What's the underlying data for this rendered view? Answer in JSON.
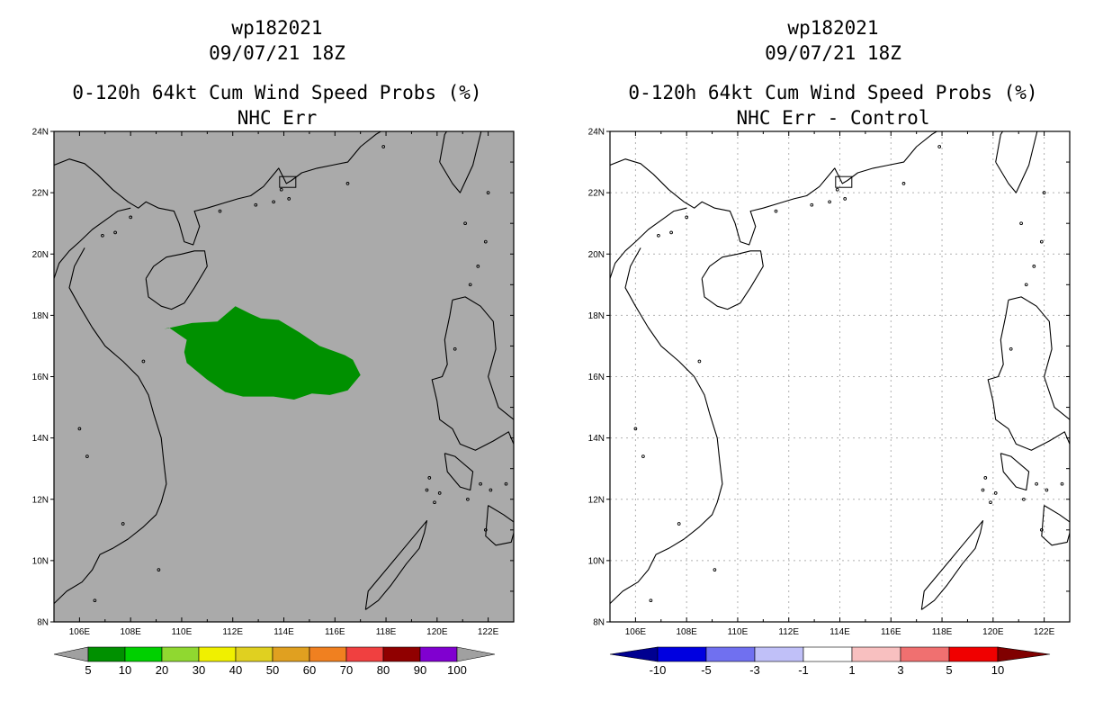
{
  "panels": [
    {
      "id": "left",
      "title_line1": "wp182021",
      "title_line2": "09/07/21 18Z",
      "title_line3": "0-120h 64kt Cum Wind Speed Probs (%)",
      "title_line4": "NHC Err",
      "background": "#aaaaaa",
      "grid": false,
      "colorbar": {
        "labels": [
          "5",
          "10",
          "20",
          "30",
          "40",
          "50",
          "60",
          "70",
          "80",
          "90",
          "100"
        ],
        "colors": [
          "#009000",
          "#00d000",
          "#90d830",
          "#f0f000",
          "#e0d020",
          "#e0a020",
          "#f08020",
          "#f04040",
          "#900000",
          "#8000d0"
        ],
        "end_color": "#a0a0a0"
      }
    },
    {
      "id": "right",
      "title_line1": "wp182021",
      "title_line2": "09/07/21 18Z",
      "title_line3": "0-120h 64kt Cum Wind Speed Probs (%)",
      "title_line4": "NHC Err - Control",
      "background": "#ffffff",
      "grid": true,
      "colorbar": {
        "labels": [
          "-10",
          "-5",
          "-3",
          "-1",
          "1",
          "3",
          "5",
          "10"
        ],
        "colors": [
          "#0000e0",
          "#7070f0",
          "#c0c0f8",
          "#ffffff",
          "#f8c0c0",
          "#f07070",
          "#f00000"
        ],
        "end_left_color": "#000090",
        "end_right_color": "#800000"
      }
    }
  ],
  "lat_labels": [
    "24N",
    "22N",
    "20N",
    "18N",
    "16N",
    "14N",
    "12N",
    "10N",
    "8N"
  ],
  "lon_labels": [
    "106E",
    "108E",
    "110E",
    "112E",
    "114E",
    "116E",
    "118E",
    "120E",
    "122E"
  ],
  "probability_area": {
    "color": "#009000",
    "level": "5-10",
    "polygon_lonlat": [
      [
        109.3,
        17.55
      ],
      [
        110.4,
        17.75
      ],
      [
        111.4,
        17.8
      ],
      [
        112.1,
        18.3
      ],
      [
        112.7,
        18.05
      ],
      [
        113.1,
        17.9
      ],
      [
        113.8,
        17.85
      ],
      [
        114.6,
        17.45
      ],
      [
        115.4,
        17.0
      ],
      [
        116.4,
        16.7
      ],
      [
        116.7,
        16.55
      ],
      [
        117.0,
        16.05
      ],
      [
        116.5,
        15.55
      ],
      [
        115.8,
        15.4
      ],
      [
        115.1,
        15.45
      ],
      [
        114.4,
        15.25
      ],
      [
        113.6,
        15.35
      ],
      [
        112.4,
        15.35
      ],
      [
        111.7,
        15.5
      ],
      [
        111.0,
        15.9
      ],
      [
        110.2,
        16.45
      ],
      [
        110.1,
        16.8
      ],
      [
        110.2,
        17.2
      ],
      [
        109.5,
        17.6
      ]
    ]
  }
}
